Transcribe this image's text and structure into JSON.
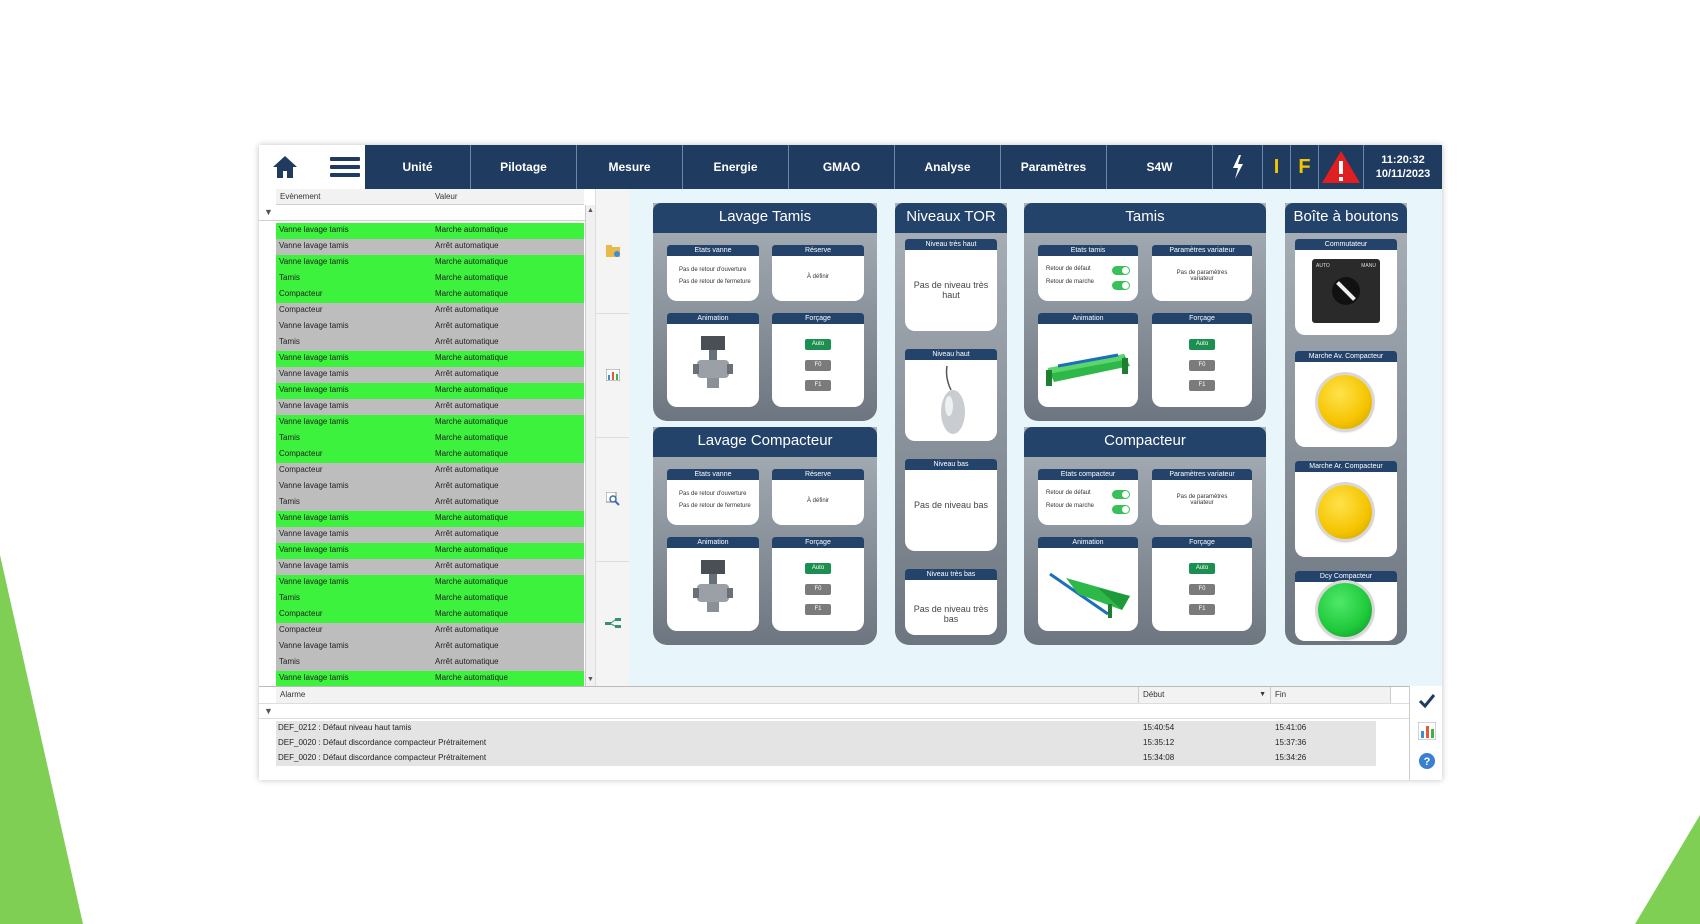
{
  "nav": {
    "tabs": [
      "Unité",
      "Pilotage",
      "Mesure",
      "Energie",
      "GMAO",
      "Analyse",
      "Paramètres",
      "S4W"
    ],
    "indicator_i": "I",
    "indicator_f": "F",
    "time": "11:20:32",
    "date": "10/11/2023"
  },
  "events": {
    "col_event": "Evènement",
    "col_value": "Valeur",
    "rows": [
      {
        "event": "Vanne lavage tamis",
        "value": "Marche automatique",
        "state": "on"
      },
      {
        "event": "Vanne lavage tamis",
        "value": "Arrêt automatique",
        "state": "off"
      },
      {
        "event": "Vanne lavage tamis",
        "value": "Marche automatique",
        "state": "on"
      },
      {
        "event": "Tamis",
        "value": "Marche automatique",
        "state": "on"
      },
      {
        "event": "Compacteur",
        "value": "Marche automatique",
        "state": "on"
      },
      {
        "event": "Compacteur",
        "value": "Arrêt automatique",
        "state": "off"
      },
      {
        "event": "Vanne lavage tamis",
        "value": "Arrêt automatique",
        "state": "off"
      },
      {
        "event": "Tamis",
        "value": "Arrêt automatique",
        "state": "off"
      },
      {
        "event": "Vanne lavage tamis",
        "value": "Marche automatique",
        "state": "on"
      },
      {
        "event": "Vanne lavage tamis",
        "value": "Arrêt automatique",
        "state": "off"
      },
      {
        "event": "Vanne lavage tamis",
        "value": "Marche automatique",
        "state": "on"
      },
      {
        "event": "Vanne lavage tamis",
        "value": "Arrêt automatique",
        "state": "off"
      },
      {
        "event": "Vanne lavage tamis",
        "value": "Marche automatique",
        "state": "on"
      },
      {
        "event": "Tamis",
        "value": "Marche automatique",
        "state": "on"
      },
      {
        "event": "Compacteur",
        "value": "Marche automatique",
        "state": "on"
      },
      {
        "event": "Compacteur",
        "value": "Arrêt automatique",
        "state": "off"
      },
      {
        "event": "Vanne lavage tamis",
        "value": "Arrêt automatique",
        "state": "off"
      },
      {
        "event": "Tamis",
        "value": "Arrêt automatique",
        "state": "off"
      },
      {
        "event": "Vanne lavage tamis",
        "value": "Marche automatique",
        "state": "on"
      },
      {
        "event": "Vanne lavage tamis",
        "value": "Arrêt automatique",
        "state": "off"
      },
      {
        "event": "Vanne lavage tamis",
        "value": "Marche automatique",
        "state": "on"
      },
      {
        "event": "Vanne lavage tamis",
        "value": "Arrêt automatique",
        "state": "off"
      },
      {
        "event": "Vanne lavage tamis",
        "value": "Marche automatique",
        "state": "on"
      },
      {
        "event": "Tamis",
        "value": "Marche automatique",
        "state": "on"
      },
      {
        "event": "Compacteur",
        "value": "Marche automatique",
        "state": "on"
      },
      {
        "event": "Compacteur",
        "value": "Arrêt automatique",
        "state": "off"
      },
      {
        "event": "Vanne lavage tamis",
        "value": "Arrêt automatique",
        "state": "off"
      },
      {
        "event": "Tamis",
        "value": "Arrêt automatique",
        "state": "off"
      },
      {
        "event": "Vanne lavage tamis",
        "value": "Marche automatique",
        "state": "on"
      }
    ]
  },
  "panels": {
    "lavage_tamis": {
      "title": "Lavage Tamis",
      "etats_title": "Etats vanne",
      "etats_line1": "Pas de retour d'ouverture",
      "etats_line2": "Pas de retour de fermeture",
      "reserve_title": "Réserve",
      "reserve_text": "À définir",
      "animation_title": "Animation",
      "forcage_title": "Forçage"
    },
    "lavage_compacteur": {
      "title": "Lavage Compacteur",
      "etats_title": "Etats vanne",
      "etats_line1": "Pas de retour d'ouverture",
      "etats_line2": "Pas de retour de fermeture",
      "reserve_title": "Réserve",
      "reserve_text": "À définir",
      "animation_title": "Animation",
      "forcage_title": "Forçage"
    },
    "niveaux_tor": {
      "title": "Niveaux TOR",
      "c1_title": "Niveau très haut",
      "c1_text": "Pas de niveau très haut",
      "c2_title": "Niveau haut",
      "c3_title": "Niveau bas",
      "c3_text": "Pas de niveau bas",
      "c4_title": "Niveau très bas",
      "c4_text": "Pas de niveau très bas"
    },
    "tamis": {
      "title": "Tamis",
      "etats_title": "Etats tamis",
      "line1": "Retour de défaut",
      "line2": "Retour de marche",
      "params_title": "Paramètres variateur",
      "params_text": "Pas de paramètres variateur",
      "animation_title": "Animation",
      "forcage_title": "Forçage"
    },
    "compacteur": {
      "title": "Compacteur",
      "etats_title": "Etats compacteur",
      "line1": "Retour de défaut",
      "line2": "Retour de marche",
      "params_title": "Paramètres variateur",
      "params_text": "Pas de paramètres variateur",
      "animation_title": "Animation",
      "forcage_title": "Forçage"
    },
    "boite": {
      "title": "Boîte à boutons",
      "commutateur_title": "Commutateur",
      "auto_label": "AUTO",
      "manu_label": "MANU",
      "b1_title": "Marche Av. Compacteur",
      "b2_title": "Marche Ar. Compacteur",
      "b3_title": "Dcy Compacteur"
    }
  },
  "forcage_buttons": [
    "Auto",
    "F0",
    "F1"
  ],
  "alarms": {
    "col_alarm": "Alarme",
    "col_start": "Début",
    "col_end": "Fin",
    "rows": [
      {
        "alarm": "DEF_0212 : Défaut niveau haut tamis",
        "start": "15:40:54",
        "end": "15:41:06"
      },
      {
        "alarm": "DEF_0020 : Défaut discordance compacteur Prétraitement",
        "start": "15:35:12",
        "end": "15:37:36"
      },
      {
        "alarm": "DEF_0020 : Défaut discordance compacteur Prétraitement",
        "start": "15:34:08",
        "end": "15:34:26"
      }
    ]
  },
  "colors": {
    "navy": "#1f3b5f",
    "event_on": "#3cf23c",
    "event_off": "#bdbdbd",
    "alarm_red": "#e02020",
    "indicator_yellow": "#f5c400",
    "button_yellow": "#f5cc00",
    "button_green": "#1ec93a"
  }
}
